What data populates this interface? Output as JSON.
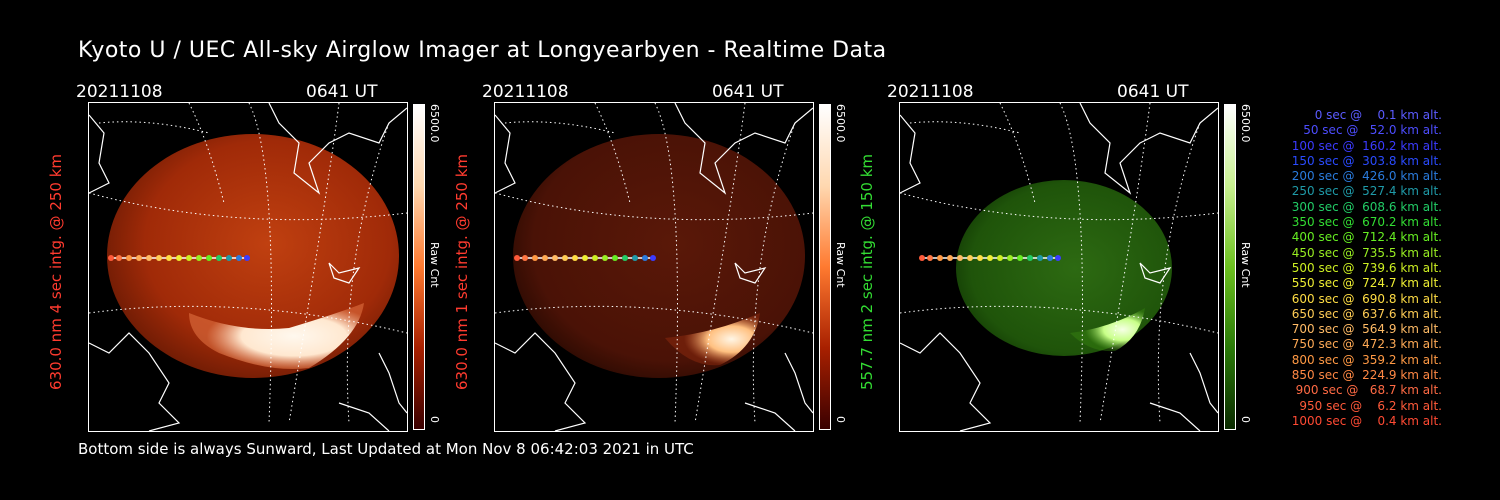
{
  "title": "Kyoto U / UEC All-sky Airglow Imager at Longyearbyen - Realtime Data",
  "footer": "Bottom side is always Sunward, Last Updated at Mon Nov  8 06:42:03 2021 in UTC",
  "panels": [
    {
      "date": "20211108",
      "time": "0641 UT",
      "side_label": "630.0 nm 4 sec intg. @ 250 km",
      "side_color": "#ff3b2f",
      "cbar_max": "6500.0",
      "cbar_unit": "Raw Cnt",
      "cbar_min": "0"
    },
    {
      "date": "20211108",
      "time": "0641 UT",
      "side_label": "630.0 nm 1 sec intg. @ 250 km",
      "side_color": "#ff3b2f",
      "cbar_max": "6500.0",
      "cbar_unit": "Raw Cnt",
      "cbar_min": "0"
    },
    {
      "date": "20211108",
      "time": "0641 UT",
      "side_label": "557.7 nm 2 sec intg. @ 150 km",
      "side_color": "#33dd33",
      "cbar_max": "6500.0",
      "cbar_unit": "Raw Cnt",
      "cbar_min": "0"
    }
  ],
  "legend": [
    {
      "text": "0 sec @    0.1 km alt.",
      "color": "#5b5bff"
    },
    {
      "text": "50 sec @   52.0 km alt.",
      "color": "#4d4dff"
    },
    {
      "text": "100 sec @  160.2 km alt.",
      "color": "#3b3bff"
    },
    {
      "text": "150 sec @  303.8 km alt.",
      "color": "#2a4bff"
    },
    {
      "text": "200 sec @  426.0 km alt.",
      "color": "#2a7bdd"
    },
    {
      "text": "250 sec @  527.4 km alt.",
      "color": "#1f9aa8"
    },
    {
      "text": "300 sec @  608.6 km alt.",
      "color": "#22cc66"
    },
    {
      "text": "350 sec @  670.2 km alt.",
      "color": "#33dd33"
    },
    {
      "text": "400 sec @  712.4 km alt.",
      "color": "#66ee22"
    },
    {
      "text": "450 sec @  735.5 km alt.",
      "color": "#99ee22"
    },
    {
      "text": "500 sec @  739.6 km alt.",
      "color": "#ccee22"
    },
    {
      "text": "550 sec @  724.7 km alt.",
      "color": "#eeee33"
    },
    {
      "text": "600 sec @  690.8 km alt.",
      "color": "#ffdd44"
    },
    {
      "text": "650 sec @  637.6 km alt.",
      "color": "#ffcc55"
    },
    {
      "text": "700 sec @  564.9 km alt.",
      "color": "#ffbb66"
    },
    {
      "text": "750 sec @  472.3 km alt.",
      "color": "#ffaa55"
    },
    {
      "text": "800 sec @  359.2 km alt.",
      "color": "#ff9944"
    },
    {
      "text": "850 sec @  224.9 km alt.",
      "color": "#ff8844"
    },
    {
      "text": "900 sec @   68.7 km alt.",
      "color": "#ff6a44"
    },
    {
      "text": "950 sec @    6.2 km alt.",
      "color": "#ff5a3a"
    },
    {
      "text": "1000 sec @    0.4 km alt.",
      "color": "#ff4a33"
    }
  ]
}
